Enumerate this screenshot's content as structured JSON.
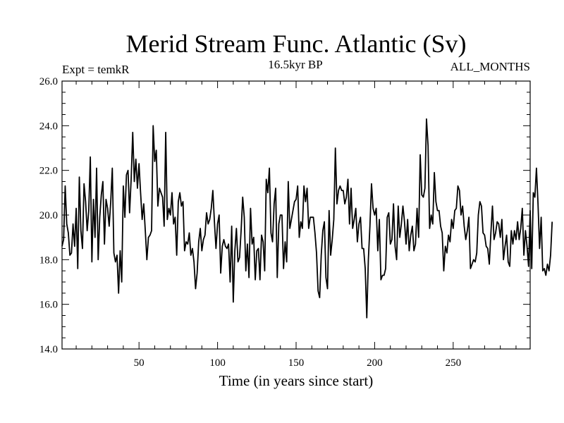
{
  "chart_data": {
    "type": "line",
    "title": "Merid Stream Func. Atlantic (Sv)",
    "subtitle_left": "Expt = temkR",
    "subtitle_center": "16.5kyr BP",
    "subtitle_right": "ALL_MONTHS",
    "xlabel": "Time (in years since start)",
    "ylabel": "",
    "xlim": [
      1,
      299
    ],
    "ylim": [
      14.0,
      26.0
    ],
    "x_ticks": [
      50,
      100,
      150,
      200,
      250
    ],
    "x_tick_labels": [
      "50",
      "100",
      "150",
      "200",
      "250"
    ],
    "y_ticks": [
      14,
      16,
      18,
      20,
      22,
      24,
      26
    ],
    "y_tick_labels": [
      "14.0",
      "16.0",
      "18.0",
      "20.0",
      "22.0",
      "24.0",
      "26.0"
    ],
    "series": [
      {
        "name": "Merid Stream Func. Atlantic",
        "color": "#000000",
        "x_start": 1,
        "x_step": 1,
        "values": [
          18.6,
          18.9,
          21.3,
          19.6,
          19.2,
          18.2,
          18.3,
          19.6,
          18.6,
          20.3,
          17.6,
          21.7,
          19.3,
          18.5,
          21.4,
          20.6,
          19.3,
          20.2,
          22.6,
          17.9,
          20.7,
          19.0,
          22.1,
          18.0,
          19.9,
          20.9,
          21.5,
          18.7,
          20.7,
          20.3,
          19.5,
          20.6,
          22.1,
          18.3,
          17.9,
          18.2,
          16.5,
          18.4,
          17.0,
          21.3,
          19.9,
          21.8,
          22.0,
          20.1,
          21.6,
          23.7,
          21.5,
          22.5,
          21.2,
          22.3,
          21.0,
          19.8,
          20.5,
          19.3,
          18.0,
          19.0,
          19.1,
          19.3,
          24.0,
          22.4,
          22.9,
          20.4,
          21.2,
          21.0,
          20.8,
          19.5,
          23.7,
          19.8,
          20.3,
          20.0,
          21.0,
          19.6,
          19.9,
          18.2,
          20.6,
          21.0,
          20.4,
          20.6,
          18.4,
          18.8,
          18.7,
          19.2,
          18.2,
          18.5,
          17.9,
          16.7,
          17.4,
          18.8,
          19.4,
          18.4,
          18.9,
          19.1,
          20.1,
          19.6,
          19.8,
          20.3,
          21.1,
          19.7,
          18.5,
          19.6,
          20.0,
          17.4,
          18.6,
          18.9,
          18.6,
          18.5,
          18.7,
          17.0,
          19.5,
          16.1,
          18.4,
          19.4,
          17.9,
          18.1,
          19.3,
          20.8,
          19.9,
          17.5,
          18.7,
          17.2,
          20.3,
          18.7,
          19.0,
          17.1,
          18.4,
          18.5,
          17.1,
          19.1,
          18.8,
          17.5,
          21.6,
          21.0,
          22.1,
          19.2,
          18.8,
          20.5,
          21.2,
          17.2,
          19.6,
          20.0,
          20.0,
          17.6,
          18.8,
          17.9,
          21.5,
          19.4,
          19.8,
          20.2,
          20.6,
          20.7,
          21.3,
          19.0,
          19.7,
          19.4,
          21.3,
          20.6,
          21.2,
          19.4,
          19.9,
          19.9,
          19.9,
          19.2,
          18.3,
          16.6,
          16.3,
          18.2,
          19.3,
          19.7,
          17.2,
          16.7,
          20.2,
          18.2,
          18.9,
          19.8,
          23.0,
          20.5,
          21.1,
          21.3,
          21.1,
          21.1,
          20.5,
          20.8,
          21.6,
          19.6,
          21.2,
          19.4,
          19.8,
          20.3,
          18.8,
          19.6,
          19.9,
          18.5,
          18.5,
          17.6,
          15.4,
          18.0,
          19.5,
          21.4,
          20.3,
          20.0,
          20.3,
          18.4,
          19.8,
          17.1,
          17.3,
          17.3,
          17.6,
          19.9,
          20.1,
          18.7,
          18.9,
          20.5,
          18.6,
          18.0,
          20.4,
          19.0,
          19.6,
          20.4,
          19.7,
          18.7,
          19.8,
          18.4,
          19.1,
          19.5,
          18.4,
          18.7,
          20.3,
          19.0,
          22.7,
          20.9,
          20.8,
          21.2,
          24.3,
          23.1,
          19.4,
          20.0,
          19.6,
          21.9,
          20.6,
          20.2,
          20.2,
          19.5,
          19.2,
          17.5,
          18.6,
          18.3,
          19.1,
          18.8,
          19.8,
          19.4,
          20.2,
          20.3,
          21.3,
          21.1,
          20.0,
          20.4,
          19.5,
          18.9,
          19.3,
          19.9,
          17.6,
          17.8,
          18.0,
          17.9,
          18.3,
          20.0,
          20.6,
          20.4,
          19.2,
          19.1,
          18.6,
          18.5,
          17.8,
          19.2,
          20.4,
          18.9,
          19.2,
          19.7,
          19.6,
          19.0,
          19.8,
          18.0,
          18.6,
          19.1,
          17.9,
          17.7,
          19.3,
          18.7,
          19.3,
          18.9,
          19.7,
          18.9,
          19.4,
          20.3,
          18.2,
          19.3,
          18.6,
          17.7,
          20.2,
          17.6,
          21.0,
          20.8,
          22.1,
          20.5,
          18.5,
          19.9,
          17.5,
          17.6,
          17.3,
          17.8,
          17.5,
          18.2,
          19.7
        ]
      }
    ]
  }
}
